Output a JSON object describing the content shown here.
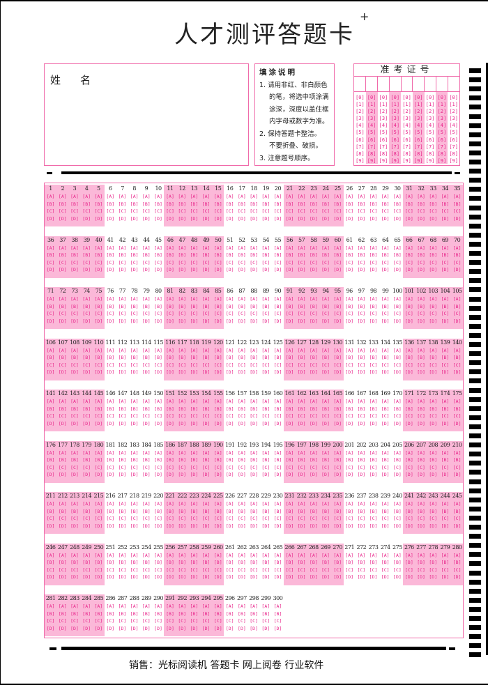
{
  "title": "人才测评答题卡",
  "corner_mark": "+",
  "name_box": {
    "label": "姓名"
  },
  "instructions": {
    "heading": "填涂说明",
    "lines": [
      "1. 请用非红、非白颜色",
      "的笔，将选中项涂满",
      "涂深，深度以盖住框",
      "内字母或数字为准。",
      "2. 保持答题卡整洁。",
      "不要折叠、破损。",
      "3. 注意题号顺序。"
    ]
  },
  "exam_id": {
    "label": "准考证号",
    "columns": 9,
    "digits": [
      "0",
      "1",
      "2",
      "3",
      "4",
      "5",
      "6",
      "7",
      "8",
      "9"
    ]
  },
  "answers": {
    "question_count": 300,
    "per_row": 35,
    "group_size": 5,
    "options": [
      "A",
      "B",
      "C",
      "D"
    ]
  },
  "footer": "销售：光标阅读机  答题卡  网上阅卷  行业软件",
  "colors": {
    "accent": "#e8248a",
    "shade": "#fbb8d8",
    "border": "#f06aaa"
  }
}
